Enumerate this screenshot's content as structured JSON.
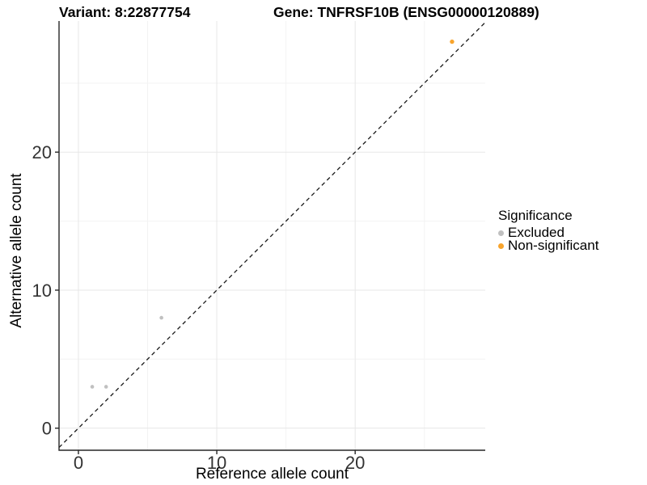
{
  "titles": {
    "variant": "Variant: 8:22877754",
    "gene": "Gene: TNFRSF10B (ENSG00000120889)"
  },
  "chart_data": {
    "type": "scatter",
    "title_left": "Variant: 8:22877754",
    "title_right": "Gene: TNFRSF10B (ENSG00000120889)",
    "xlabel": "Reference allele count",
    "ylabel": "Alternative allele count",
    "xlim": [
      -1.4,
      29.4
    ],
    "ylim": [
      -1.6,
      29.5
    ],
    "x_ticks": [
      0,
      10,
      20
    ],
    "y_ticks": [
      0,
      10,
      20
    ],
    "x_minor_gridlines": [
      5,
      15,
      25
    ],
    "y_minor_gridlines": [
      5,
      15,
      25
    ],
    "grid": "major and minor light-gray gridlines on white panel",
    "legend": {
      "title": "Significance",
      "position": "right",
      "items": [
        {
          "label": "Excluded",
          "color": "#C0C0C0"
        },
        {
          "label": "Non-significant",
          "color": "#F8A42C"
        }
      ]
    },
    "reference_line": {
      "type": "identity y=x",
      "style": "dashed",
      "color": "#1a1a1a"
    },
    "series": [
      {
        "name": "Excluded",
        "color": "#C0C0C0",
        "points": [
          [
            1,
            3
          ],
          [
            2,
            3
          ],
          [
            6,
            8
          ]
        ]
      },
      {
        "name": "Non-significant",
        "color": "#F8A42C",
        "points": [
          [
            27,
            28
          ]
        ]
      }
    ],
    "axis_color": "#262626",
    "tick_label_color": "#333333"
  }
}
